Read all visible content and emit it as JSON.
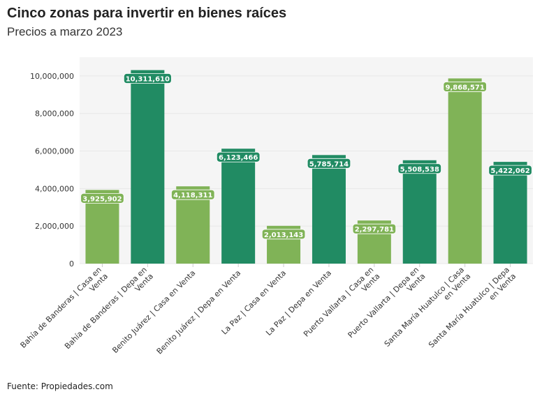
{
  "title": "Cinco zonas para invertir en bienes raíces",
  "subtitle": "Precios a marzo 2023",
  "source": "Fuente: Propiedades.com",
  "chart_data": {
    "type": "bar",
    "title": "Cinco zonas para invertir en bienes raíces",
    "subtitle": "Precios a marzo 2023",
    "xlabel": "",
    "ylabel": "",
    "ylim": [
      0,
      11000000
    ],
    "yticks": [
      0,
      2000000,
      4000000,
      6000000,
      8000000,
      10000000
    ],
    "ytick_labels": [
      "0",
      "2,000,000",
      "4,000,000",
      "6,000,000",
      "8,000,000",
      "10,000,000"
    ],
    "grid": true,
    "categories": [
      "Bahía de Banderas | Casa en Venta",
      "Bahía de Banderas | Depa en Venta",
      "Benito Juárez | Casa en Venta",
      "Benito Juárez | Depa en Venta",
      "La Paz | Casa en Venta",
      "La Paz | Depa en Venta",
      "Puerto Vallarta | Casa en Venta",
      "Puerto Vallarta | Depa en Venta",
      "Santa María Huatulco | Casa en Venta",
      "Santa María Huatulco | Depa en Venta"
    ],
    "values": [
      3925902,
      10311610,
      4118311,
      6123466,
      2013143,
      5785714,
      2297781,
      5508538,
      9868571,
      5422062
    ],
    "data_labels": [
      "3,925,902",
      "10,311,610",
      "4,118,311",
      "6,123,466",
      "2,013,143",
      "5,785,714",
      "2,297,781",
      "5,508,538",
      "9,868,571",
      "5,422,062"
    ],
    "colors": {
      "casa": "#80b357",
      "depa": "#218b63",
      "plot_bg": "#f5f5f5",
      "grid": "#e8e8e8"
    }
  }
}
